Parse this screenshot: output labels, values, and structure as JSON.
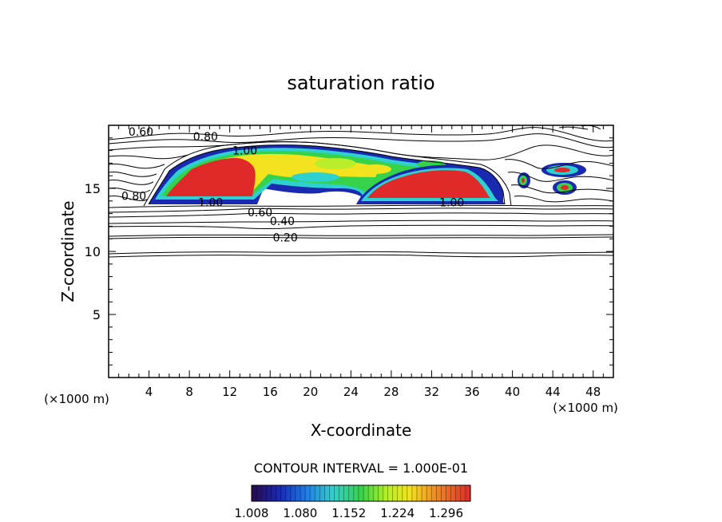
{
  "chart_data": {
    "type": "contour",
    "title": "saturation ratio",
    "xlabel": "X-coordinate",
    "ylabel": "Z-coordinate",
    "x_unit": "(×1000 m)",
    "z_unit": "(×1000 m)",
    "xlim": [
      0,
      50
    ],
    "ylim": [
      0,
      20
    ],
    "x_ticks": [
      4,
      8,
      12,
      16,
      20,
      24,
      28,
      32,
      36,
      40,
      44,
      48
    ],
    "y_ticks": [
      5,
      10,
      15
    ],
    "contour_interval_text": "CONTOUR INTERVAL = 1.000E-01",
    "contour_labels": [
      {
        "text": "0.60",
        "x": 3.2,
        "z": 19.5
      },
      {
        "text": "0.80",
        "x": 9.6,
        "z": 19.1
      },
      {
        "text": "1.00",
        "x": 13.5,
        "z": 18.0
      },
      {
        "text": "0.80",
        "x": 2.5,
        "z": 14.4
      },
      {
        "text": "1.00",
        "x": 10.1,
        "z": 13.9
      },
      {
        "text": "1.00",
        "x": 34.0,
        "z": 13.9
      },
      {
        "text": "0.60",
        "x": 15.0,
        "z": 13.1
      },
      {
        "text": "0.40",
        "x": 17.2,
        "z": 12.4
      },
      {
        "text": "0.20",
        "x": 17.5,
        "z": 11.1
      }
    ],
    "colorbar": {
      "min": 1.008,
      "max": 1.332,
      "tick_labels": [
        "1.008",
        "1.080",
        "1.152",
        "1.224",
        "1.296"
      ],
      "colors": [
        "#2a0a4a",
        "#1a2ab0",
        "#1f7de6",
        "#2ed0d0",
        "#36d24a",
        "#b8ee2a",
        "#f2e31e",
        "#f28a1e",
        "#e02a2a"
      ]
    },
    "supersaturated_regions": [
      {
        "x_range": [
          4,
          16
        ],
        "z_range": [
          13.9,
          18.2
        ],
        "max_ratio": 1.33
      },
      {
        "x_range": [
          25.5,
          39
        ],
        "z_range": [
          13.9,
          16.7
        ],
        "max_ratio": 1.33
      },
      {
        "x_range": [
          40,
          47.5
        ],
        "z_range": [
          14.3,
          17.0
        ],
        "max_ratio": 1.3
      }
    ]
  }
}
